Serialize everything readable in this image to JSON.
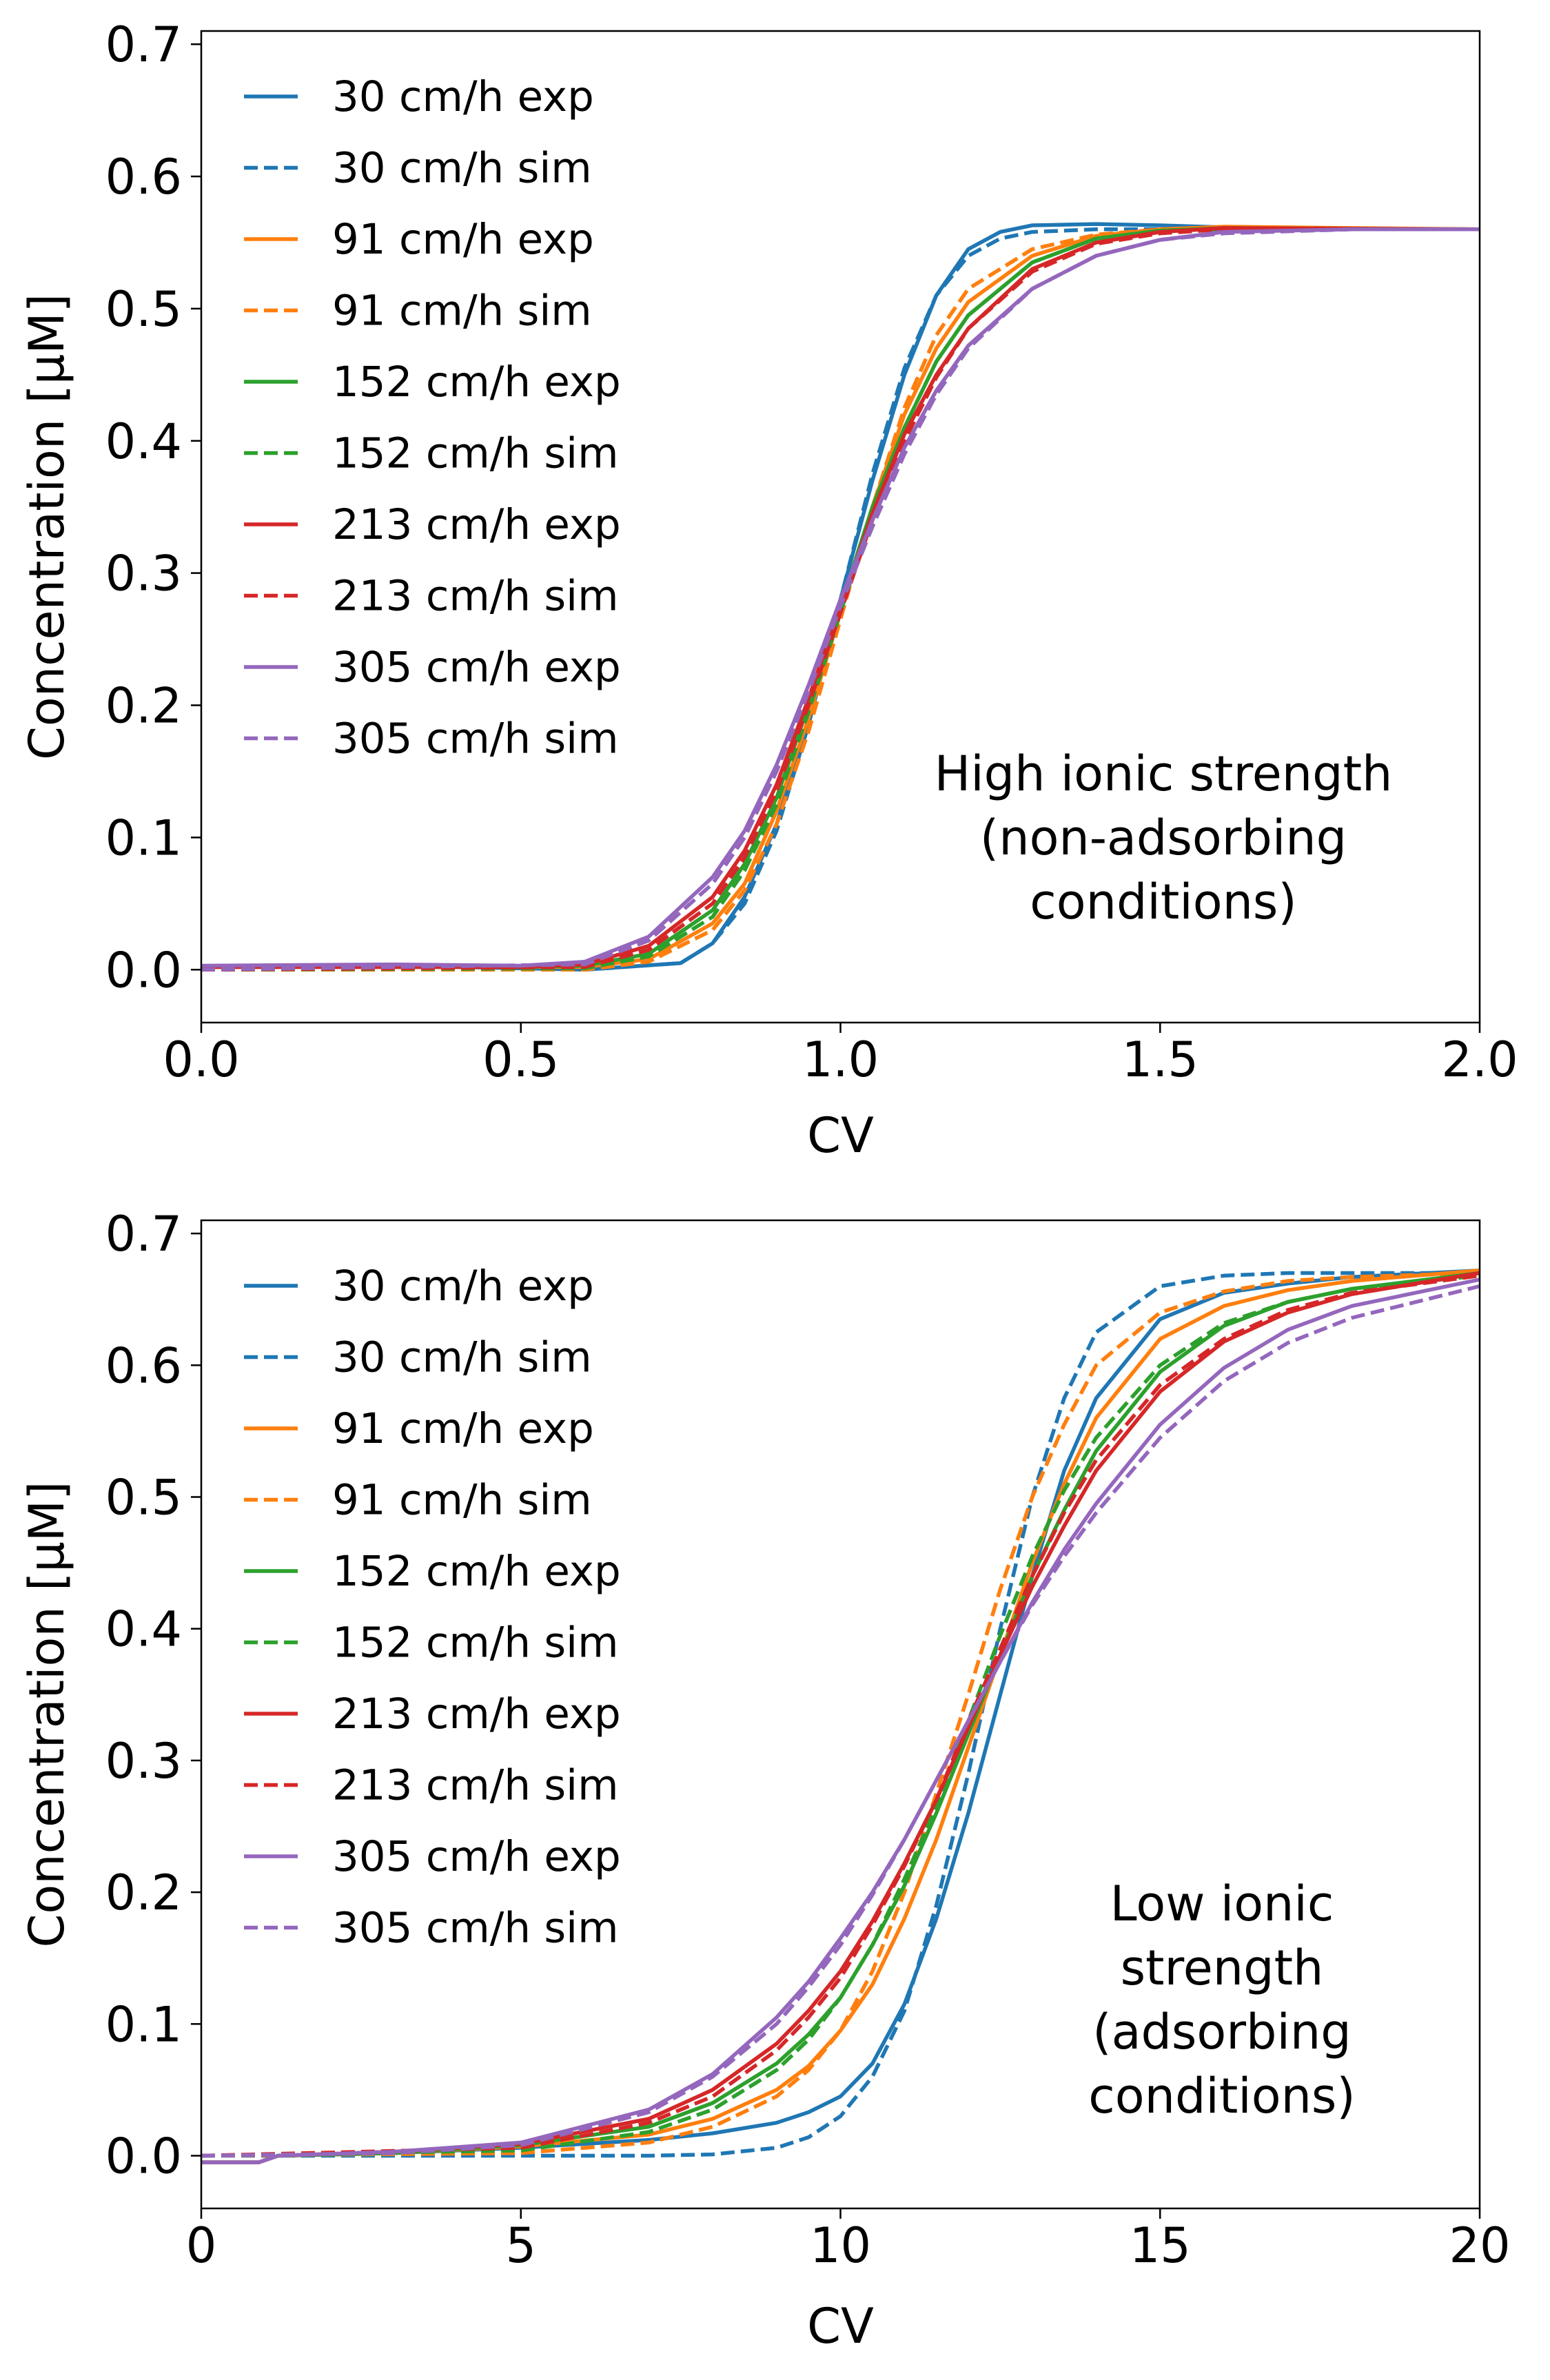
{
  "chart_data": [
    {
      "type": "line",
      "xlabel": "CV",
      "ylabel": "Concentration [μM]",
      "xlim": [
        0.0,
        2.0
      ],
      "ylim": [
        -0.04,
        0.71
      ],
      "xticks": [
        "0.0",
        "0.5",
        "1.0",
        "1.5",
        "2.0"
      ],
      "yticks": [
        "0.0",
        "0.1",
        "0.2",
        "0.3",
        "0.4",
        "0.5",
        "0.6",
        "0.7"
      ],
      "annotation": [
        "High ionic strength",
        "(non-adsorbing",
        "conditions)"
      ],
      "legend_position": "upper-left",
      "series": [
        {
          "name": "30 cm/h exp",
          "color": "#1f77b4",
          "style": "solid",
          "x": [
            0.0,
            0.2,
            0.4,
            0.6,
            0.75,
            0.8,
            0.85,
            0.9,
            0.95,
            1.0,
            1.05,
            1.1,
            1.15,
            1.2,
            1.25,
            1.3,
            1.4,
            1.5,
            1.7,
            2.0
          ],
          "y": [
            0.002,
            0.002,
            0.002,
            0.0,
            0.005,
            0.02,
            0.055,
            0.11,
            0.19,
            0.28,
            0.37,
            0.45,
            0.51,
            0.545,
            0.558,
            0.563,
            0.564,
            0.563,
            0.56,
            0.56
          ]
        },
        {
          "name": "30 cm/h sim",
          "color": "#1f77b4",
          "style": "dashed",
          "x": [
            0.0,
            0.6,
            0.75,
            0.8,
            0.85,
            0.9,
            0.95,
            1.0,
            1.05,
            1.1,
            1.15,
            1.2,
            1.25,
            1.3,
            1.4,
            1.5,
            2.0
          ],
          "y": [
            0.0,
            0.0,
            0.005,
            0.02,
            0.05,
            0.105,
            0.185,
            0.28,
            0.375,
            0.455,
            0.51,
            0.54,
            0.553,
            0.558,
            0.56,
            0.56,
            0.56
          ]
        },
        {
          "name": "91 cm/h exp",
          "color": "#ff7f0e",
          "style": "solid",
          "x": [
            0.0,
            0.5,
            0.6,
            0.7,
            0.8,
            0.85,
            0.9,
            0.95,
            1.0,
            1.05,
            1.1,
            1.15,
            1.2,
            1.3,
            1.4,
            1.5,
            1.6,
            2.0
          ],
          "y": [
            0.002,
            0.002,
            0.002,
            0.008,
            0.035,
            0.065,
            0.12,
            0.19,
            0.27,
            0.35,
            0.42,
            0.47,
            0.505,
            0.54,
            0.555,
            0.56,
            0.562,
            0.56
          ]
        },
        {
          "name": "91 cm/h sim",
          "color": "#ff7f0e",
          "style": "dashed",
          "x": [
            0.0,
            0.6,
            0.7,
            0.8,
            0.85,
            0.9,
            0.95,
            1.0,
            1.05,
            1.1,
            1.15,
            1.2,
            1.3,
            1.4,
            1.5,
            1.6,
            2.0
          ],
          "y": [
            0.0,
            0.0,
            0.006,
            0.03,
            0.06,
            0.11,
            0.18,
            0.265,
            0.35,
            0.425,
            0.48,
            0.515,
            0.545,
            0.556,
            0.56,
            0.56,
            0.56
          ]
        },
        {
          "name": "152 cm/h exp",
          "color": "#2ca02c",
          "style": "solid",
          "x": [
            0.0,
            0.5,
            0.6,
            0.7,
            0.8,
            0.85,
            0.9,
            0.95,
            1.0,
            1.05,
            1.1,
            1.15,
            1.2,
            1.3,
            1.4,
            1.5,
            1.6,
            2.0
          ],
          "y": [
            0.002,
            0.002,
            0.003,
            0.012,
            0.045,
            0.08,
            0.13,
            0.2,
            0.275,
            0.35,
            0.41,
            0.46,
            0.495,
            0.535,
            0.553,
            0.559,
            0.561,
            0.56
          ]
        },
        {
          "name": "152 cm/h sim",
          "color": "#2ca02c",
          "style": "dashed",
          "x": [
            0.0,
            0.6,
            0.7,
            0.8,
            0.85,
            0.9,
            0.95,
            1.0,
            1.05,
            1.1,
            1.15,
            1.2,
            1.3,
            1.4,
            1.5,
            1.6,
            2.0
          ],
          "y": [
            0.0,
            0.001,
            0.01,
            0.04,
            0.075,
            0.125,
            0.195,
            0.27,
            0.345,
            0.41,
            0.46,
            0.495,
            0.535,
            0.553,
            0.559,
            0.56,
            0.56
          ]
        },
        {
          "name": "213 cm/h exp",
          "color": "#d62728",
          "style": "solid",
          "x": [
            0.0,
            0.5,
            0.6,
            0.7,
            0.8,
            0.85,
            0.9,
            0.95,
            1.0,
            1.05,
            1.1,
            1.15,
            1.2,
            1.3,
            1.4,
            1.5,
            1.6,
            2.0
          ],
          "y": [
            0.002,
            0.002,
            0.004,
            0.018,
            0.055,
            0.09,
            0.14,
            0.205,
            0.275,
            0.345,
            0.405,
            0.45,
            0.485,
            0.53,
            0.55,
            0.558,
            0.561,
            0.56
          ]
        },
        {
          "name": "213 cm/h sim",
          "color": "#d62728",
          "style": "dashed",
          "x": [
            0.0,
            0.6,
            0.7,
            0.8,
            0.85,
            0.9,
            0.95,
            1.0,
            1.05,
            1.1,
            1.15,
            1.2,
            1.3,
            1.4,
            1.5,
            1.6,
            2.0
          ],
          "y": [
            0.0,
            0.002,
            0.015,
            0.05,
            0.085,
            0.135,
            0.2,
            0.27,
            0.34,
            0.4,
            0.448,
            0.485,
            0.528,
            0.549,
            0.557,
            0.56,
            0.56
          ]
        },
        {
          "name": "305 cm/h exp",
          "color": "#9467bd",
          "style": "solid",
          "x": [
            0.0,
            0.3,
            0.5,
            0.6,
            0.7,
            0.8,
            0.85,
            0.9,
            0.95,
            1.0,
            1.05,
            1.1,
            1.15,
            1.2,
            1.3,
            1.4,
            1.5,
            1.6,
            1.8,
            2.0
          ],
          "y": [
            0.003,
            0.004,
            0.003,
            0.006,
            0.025,
            0.07,
            0.105,
            0.155,
            0.215,
            0.28,
            0.34,
            0.395,
            0.438,
            0.472,
            0.515,
            0.54,
            0.552,
            0.558,
            0.56,
            0.56
          ]
        },
        {
          "name": "305 cm/h sim",
          "color": "#9467bd",
          "style": "dashed",
          "x": [
            0.0,
            0.6,
            0.7,
            0.8,
            0.85,
            0.9,
            0.95,
            1.0,
            1.05,
            1.1,
            1.15,
            1.2,
            1.3,
            1.4,
            1.5,
            1.6,
            1.8,
            2.0
          ],
          "y": [
            0.0,
            0.004,
            0.022,
            0.065,
            0.1,
            0.15,
            0.21,
            0.275,
            0.335,
            0.39,
            0.435,
            0.47,
            0.515,
            0.54,
            0.552,
            0.557,
            0.56,
            0.56
          ]
        }
      ]
    },
    {
      "type": "line",
      "xlabel": "CV",
      "ylabel": "Concentration [μM]",
      "xlim": [
        0,
        20
      ],
      "ylim": [
        -0.04,
        0.71
      ],
      "xticks": [
        "0",
        "5",
        "10",
        "15",
        "20"
      ],
      "yticks": [
        "0.0",
        "0.1",
        "0.2",
        "0.3",
        "0.4",
        "0.5",
        "0.6",
        "0.7"
      ],
      "annotation": [
        "Low ionic",
        "strength",
        "(adsorbing",
        "conditions)"
      ],
      "legend_position": "upper-left",
      "series": [
        {
          "name": "30 cm/h exp",
          "color": "#1f77b4",
          "style": "solid",
          "x": [
            0,
            0.9,
            1.2,
            3,
            5,
            7,
            8,
            9,
            9.5,
            10,
            10.5,
            11,
            11.5,
            12,
            12.5,
            13,
            13.5,
            14,
            15,
            16,
            17,
            18,
            20
          ],
          "y": [
            -0.005,
            -0.005,
            0.0,
            0.002,
            0.006,
            0.012,
            0.017,
            0.025,
            0.033,
            0.045,
            0.07,
            0.115,
            0.18,
            0.26,
            0.35,
            0.44,
            0.52,
            0.575,
            0.635,
            0.655,
            0.662,
            0.667,
            0.672
          ]
        },
        {
          "name": "30 cm/h sim",
          "color": "#1f77b4",
          "style": "dashed",
          "x": [
            0,
            7,
            8,
            9,
            9.5,
            10,
            10.5,
            11,
            11.5,
            12,
            12.5,
            13,
            13.5,
            14,
            15,
            16,
            17,
            20
          ],
          "y": [
            0.0,
            0.0,
            0.001,
            0.006,
            0.014,
            0.03,
            0.06,
            0.11,
            0.19,
            0.29,
            0.4,
            0.5,
            0.575,
            0.625,
            0.66,
            0.668,
            0.67,
            0.67
          ]
        },
        {
          "name": "91 cm/h exp",
          "color": "#ff7f0e",
          "style": "solid",
          "x": [
            0,
            0.9,
            1.2,
            3,
            5,
            7,
            8,
            9,
            9.5,
            10,
            10.5,
            11,
            11.5,
            12,
            12.5,
            13,
            13.5,
            14,
            15,
            16,
            17,
            18,
            20
          ],
          "y": [
            -0.005,
            -0.005,
            0.0,
            0.002,
            0.007,
            0.016,
            0.028,
            0.05,
            0.068,
            0.095,
            0.13,
            0.18,
            0.24,
            0.31,
            0.38,
            0.45,
            0.51,
            0.56,
            0.62,
            0.645,
            0.657,
            0.664,
            0.672
          ]
        },
        {
          "name": "91 cm/h sim",
          "color": "#ff7f0e",
          "style": "dashed",
          "x": [
            0,
            5,
            7,
            8,
            9,
            9.5,
            10,
            10.5,
            11,
            11.5,
            12,
            12.5,
            13,
            13.5,
            14,
            15,
            16,
            17,
            18,
            20
          ],
          "y": [
            0.0,
            0.002,
            0.01,
            0.022,
            0.045,
            0.065,
            0.095,
            0.14,
            0.2,
            0.275,
            0.35,
            0.43,
            0.5,
            0.555,
            0.6,
            0.64,
            0.656,
            0.664,
            0.667,
            0.67
          ]
        },
        {
          "name": "152 cm/h exp",
          "color": "#2ca02c",
          "style": "solid",
          "x": [
            0,
            0.9,
            1.2,
            3,
            5,
            7,
            8,
            9,
            9.5,
            10,
            10.5,
            11,
            11.5,
            12,
            12.5,
            13,
            13.5,
            14,
            15,
            16,
            17,
            18,
            20
          ],
          "y": [
            -0.005,
            -0.005,
            0.0,
            0.002,
            0.008,
            0.022,
            0.04,
            0.07,
            0.092,
            0.12,
            0.16,
            0.205,
            0.26,
            0.32,
            0.38,
            0.44,
            0.49,
            0.535,
            0.595,
            0.63,
            0.648,
            0.658,
            0.67
          ]
        },
        {
          "name": "152 cm/h sim",
          "color": "#2ca02c",
          "style": "dashed",
          "x": [
            0,
            5,
            7,
            8,
            9,
            9.5,
            10,
            10.5,
            11,
            11.5,
            12,
            12.5,
            13,
            13.5,
            14,
            15,
            16,
            17,
            18,
            20
          ],
          "y": [
            0.0,
            0.004,
            0.018,
            0.035,
            0.065,
            0.088,
            0.12,
            0.16,
            0.21,
            0.265,
            0.33,
            0.395,
            0.455,
            0.505,
            0.545,
            0.6,
            0.632,
            0.648,
            0.658,
            0.668
          ]
        },
        {
          "name": "213 cm/h exp",
          "color": "#d62728",
          "style": "solid",
          "x": [
            0,
            0.9,
            1.2,
            3,
            5,
            7,
            8,
            9,
            9.5,
            10,
            10.5,
            11,
            11.5,
            12,
            12.5,
            13,
            13.5,
            14,
            15,
            16,
            17,
            18,
            20
          ],
          "y": [
            -0.005,
            -0.005,
            0.0,
            0.003,
            0.009,
            0.028,
            0.05,
            0.085,
            0.11,
            0.14,
            0.178,
            0.222,
            0.27,
            0.325,
            0.38,
            0.432,
            0.478,
            0.52,
            0.58,
            0.618,
            0.64,
            0.654,
            0.67
          ]
        },
        {
          "name": "213 cm/h sim",
          "color": "#d62728",
          "style": "dashed",
          "x": [
            0,
            5,
            7,
            8,
            9,
            9.5,
            10,
            10.5,
            11,
            11.5,
            12,
            12.5,
            13,
            13.5,
            14,
            15,
            16,
            17,
            18,
            20
          ],
          "y": [
            0.0,
            0.006,
            0.025,
            0.045,
            0.08,
            0.105,
            0.135,
            0.175,
            0.22,
            0.27,
            0.33,
            0.385,
            0.44,
            0.488,
            0.528,
            0.585,
            0.62,
            0.642,
            0.655,
            0.668
          ]
        },
        {
          "name": "305 cm/h exp",
          "color": "#9467bd",
          "style": "solid",
          "x": [
            0,
            0.9,
            1.2,
            3,
            5,
            7,
            8,
            9,
            9.5,
            10,
            10.5,
            11,
            11.5,
            12,
            12.5,
            13,
            13.5,
            14,
            15,
            16,
            17,
            18,
            20
          ],
          "y": [
            -0.005,
            -0.005,
            0.0,
            0.003,
            0.01,
            0.035,
            0.062,
            0.105,
            0.132,
            0.165,
            0.2,
            0.24,
            0.285,
            0.33,
            0.375,
            0.42,
            0.46,
            0.495,
            0.555,
            0.598,
            0.627,
            0.645,
            0.665
          ]
        },
        {
          "name": "305 cm/h sim",
          "color": "#9467bd",
          "style": "dashed",
          "x": [
            0,
            3,
            5,
            7,
            8,
            9,
            9.5,
            10,
            10.5,
            11,
            11.5,
            12,
            12.5,
            13,
            13.5,
            14,
            15,
            16,
            17,
            18,
            20
          ],
          "y": [
            0.0,
            0.002,
            0.008,
            0.033,
            0.06,
            0.1,
            0.128,
            0.16,
            0.198,
            0.24,
            0.285,
            0.33,
            0.375,
            0.418,
            0.455,
            0.488,
            0.545,
            0.588,
            0.617,
            0.636,
            0.66
          ]
        }
      ]
    }
  ]
}
